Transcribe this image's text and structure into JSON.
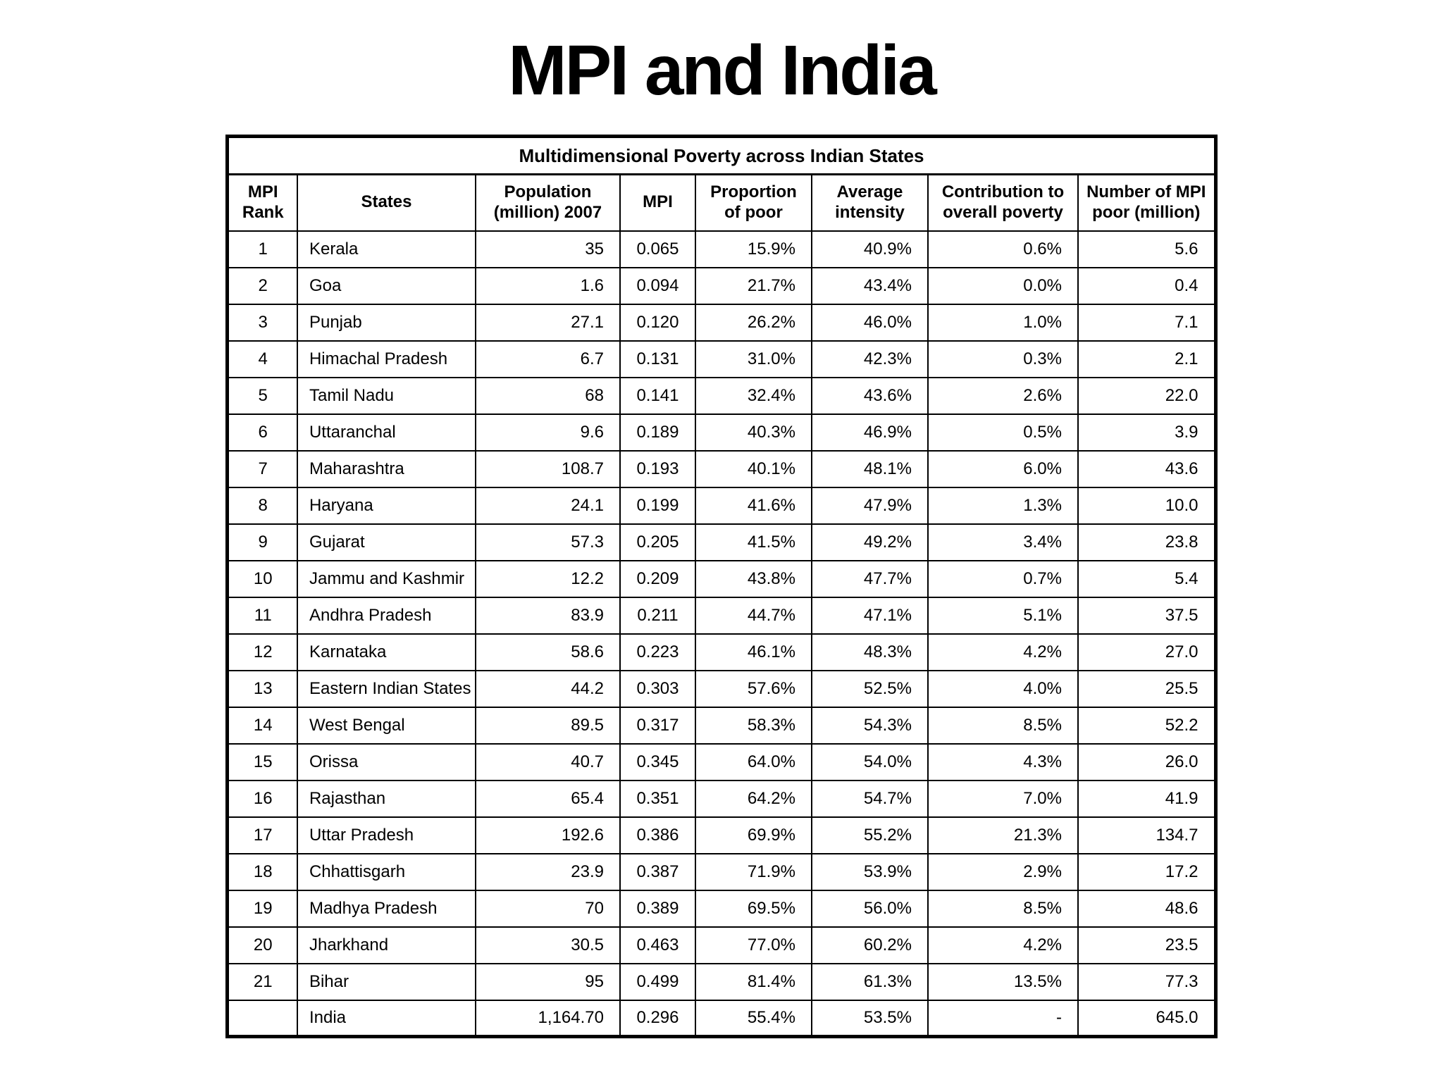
{
  "page_title": "MPI and India",
  "table": {
    "caption": "Multidimensional Poverty across Indian States",
    "columns": [
      "MPI Rank",
      "States",
      "Population (million) 2007",
      "MPI",
      "Proportion of poor",
      "Average intensity",
      "Contribution to overall poverty",
      "Number of MPI poor (million)"
    ],
    "rows": [
      [
        "1",
        "Kerala",
        "35",
        "0.065",
        "15.9%",
        "40.9%",
        "0.6%",
        "5.6"
      ],
      [
        "2",
        "Goa",
        "1.6",
        "0.094",
        "21.7%",
        "43.4%",
        "0.0%",
        "0.4"
      ],
      [
        "3",
        "Punjab",
        "27.1",
        "0.120",
        "26.2%",
        "46.0%",
        "1.0%",
        "7.1"
      ],
      [
        "4",
        "Himachal Pradesh",
        "6.7",
        "0.131",
        "31.0%",
        "42.3%",
        "0.3%",
        "2.1"
      ],
      [
        "5",
        "Tamil Nadu",
        "68",
        "0.141",
        "32.4%",
        "43.6%",
        "2.6%",
        "22.0"
      ],
      [
        "6",
        "Uttaranchal",
        "9.6",
        "0.189",
        "40.3%",
        "46.9%",
        "0.5%",
        "3.9"
      ],
      [
        "7",
        "Maharashtra",
        "108.7",
        "0.193",
        "40.1%",
        "48.1%",
        "6.0%",
        "43.6"
      ],
      [
        "8",
        "Haryana",
        "24.1",
        "0.199",
        "41.6%",
        "47.9%",
        "1.3%",
        "10.0"
      ],
      [
        "9",
        "Gujarat",
        "57.3",
        "0.205",
        "41.5%",
        "49.2%",
        "3.4%",
        "23.8"
      ],
      [
        "10",
        "Jammu and Kashmir",
        "12.2",
        "0.209",
        "43.8%",
        "47.7%",
        "0.7%",
        "5.4"
      ],
      [
        "11",
        "Andhra Pradesh",
        "83.9",
        "0.211",
        "44.7%",
        "47.1%",
        "5.1%",
        "37.5"
      ],
      [
        "12",
        "Karnataka",
        "58.6",
        "0.223",
        "46.1%",
        "48.3%",
        "4.2%",
        "27.0"
      ],
      [
        "13",
        "Eastern Indian States",
        "44.2",
        "0.303",
        "57.6%",
        "52.5%",
        "4.0%",
        "25.5"
      ],
      [
        "14",
        "West Bengal",
        "89.5",
        "0.317",
        "58.3%",
        "54.3%",
        "8.5%",
        "52.2"
      ],
      [
        "15",
        "Orissa",
        "40.7",
        "0.345",
        "64.0%",
        "54.0%",
        "4.3%",
        "26.0"
      ],
      [
        "16",
        "Rajasthan",
        "65.4",
        "0.351",
        "64.2%",
        "54.7%",
        "7.0%",
        "41.9"
      ],
      [
        "17",
        "Uttar Pradesh",
        "192.6",
        "0.386",
        "69.9%",
        "55.2%",
        "21.3%",
        "134.7"
      ],
      [
        "18",
        "Chhattisgarh",
        "23.9",
        "0.387",
        "71.9%",
        "53.9%",
        "2.9%",
        "17.2"
      ],
      [
        "19",
        "Madhya Pradesh",
        "70",
        "0.389",
        "69.5%",
        "56.0%",
        "8.5%",
        "48.6"
      ],
      [
        "20",
        "Jharkhand",
        "30.5",
        "0.463",
        "77.0%",
        "60.2%",
        "4.2%",
        "23.5"
      ],
      [
        "21",
        "Bihar",
        "95",
        "0.499",
        "81.4%",
        "61.3%",
        "13.5%",
        "77.3"
      ],
      [
        "",
        "India",
        "1,164.70",
        "0.296",
        "55.4%",
        "53.5%",
        "-",
        "645.0"
      ]
    ]
  }
}
